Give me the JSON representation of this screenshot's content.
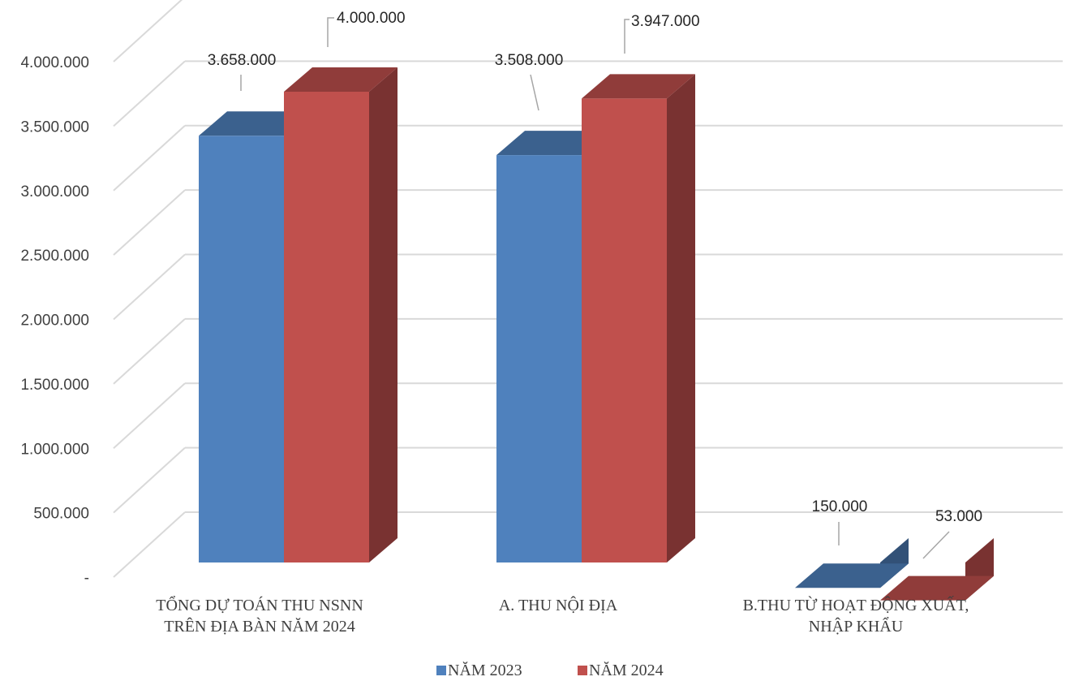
{
  "chart_data": {
    "type": "bar",
    "style": "3d-clustered-column",
    "categories": [
      [
        "TỔNG DỰ TOÁN THU NSNN",
        "TRÊN ĐỊA BÀN NĂM 2024"
      ],
      [
        "A. THU NỘI ĐỊA"
      ],
      [
        "B.THU TỪ HOẠT ĐỘNG XUẤT,",
        "NHẬP KHẨU"
      ]
    ],
    "series": [
      {
        "name": "NĂM 2023",
        "values": [
          3658000,
          3508000,
          150000
        ],
        "labels": [
          "3.658.000",
          "3.508.000",
          "150.000"
        ],
        "color": "#4f81bd"
      },
      {
        "name": "NĂM 2024",
        "values": [
          4000000,
          3947000,
          53000
        ],
        "labels": [
          "4.000.000",
          "3.947.000",
          "53.000"
        ],
        "color": "#c0504d"
      }
    ],
    "yticks": [
      "-",
      "500.000",
      "1.000.000",
      "1.500.000",
      "2.000.000",
      "2.500.000",
      "3.000.000",
      "3.500.000",
      "4.000.000"
    ],
    "ylim": [
      0,
      4000000
    ],
    "grid": true,
    "legend_position": "bottom"
  }
}
